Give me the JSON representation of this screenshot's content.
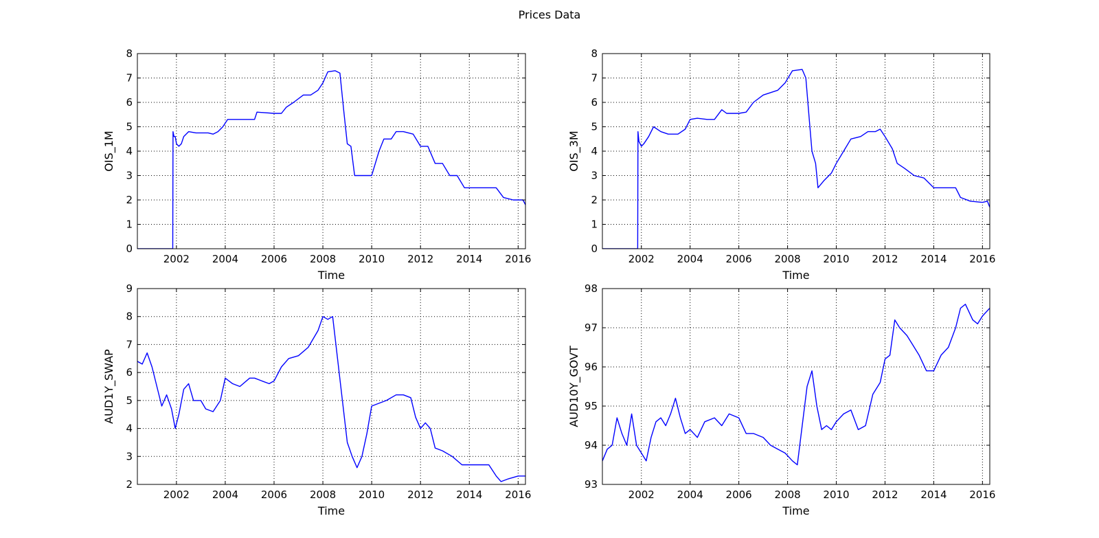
{
  "figure": {
    "title": "Prices Data"
  },
  "colors": {
    "line": "#0000ff",
    "axes": "#000000",
    "grid": "#000000"
  },
  "chart_data": [
    {
      "type": "line",
      "xlabel": "Time",
      "ylabel": "OIS_1M",
      "xlim": [
        2000.4,
        2016.3
      ],
      "ylim": [
        0,
        8
      ],
      "xticks": [
        2002,
        2004,
        2006,
        2008,
        2010,
        2012,
        2014,
        2016
      ],
      "yticks": [
        0,
        1,
        2,
        3,
        4,
        5,
        6,
        7,
        8
      ],
      "grid": true,
      "series": [
        {
          "x": [
            2000.4,
            2001.85,
            2001.86,
            2001.9,
            2001.95,
            2002.0,
            2002.1,
            2002.2,
            2002.3,
            2002.5,
            2002.8,
            2003.0,
            2003.3,
            2003.5,
            2003.7,
            2003.9,
            2004.1,
            2004.5,
            2005.0,
            2005.2,
            2005.3,
            2006.0,
            2006.3,
            2006.5,
            2006.8,
            2007.2,
            2007.5,
            2007.8,
            2008.0,
            2008.2,
            2008.5,
            2008.7,
            2008.85,
            2009.0,
            2009.15,
            2009.3,
            2009.5,
            2009.8,
            2010.0,
            2010.3,
            2010.5,
            2010.8,
            2011.0,
            2011.3,
            2011.7,
            2012.0,
            2012.3,
            2012.6,
            2012.9,
            2013.2,
            2013.5,
            2013.8,
            2014.5,
            2014.95,
            2015.1,
            2015.4,
            2015.8,
            2016.2,
            2016.3
          ],
          "y": [
            0,
            0,
            4.8,
            4.6,
            4.6,
            4.3,
            4.2,
            4.3,
            4.6,
            4.8,
            4.75,
            4.75,
            4.75,
            4.7,
            4.8,
            5.0,
            5.3,
            5.3,
            5.3,
            5.3,
            5.6,
            5.55,
            5.55,
            5.8,
            6.0,
            6.3,
            6.3,
            6.5,
            6.8,
            7.25,
            7.3,
            7.2,
            5.7,
            4.3,
            4.2,
            3.0,
            3.0,
            3.0,
            3.0,
            4.0,
            4.5,
            4.5,
            4.8,
            4.8,
            4.7,
            4.2,
            4.2,
            3.5,
            3.5,
            3.0,
            3.0,
            2.5,
            2.5,
            2.5,
            2.5,
            2.1,
            2.0,
            2.0,
            1.8
          ]
        }
      ]
    },
    {
      "type": "line",
      "xlabel": "Time",
      "ylabel": "OIS_3M",
      "xlim": [
        2000.4,
        2016.3
      ],
      "ylim": [
        0,
        8
      ],
      "xticks": [
        2002,
        2004,
        2006,
        2008,
        2010,
        2012,
        2014,
        2016
      ],
      "yticks": [
        0,
        1,
        2,
        3,
        4,
        5,
        6,
        7,
        8
      ],
      "grid": true,
      "series": [
        {
          "x": [
            2000.4,
            2001.85,
            2001.86,
            2001.9,
            2002.0,
            2002.1,
            2002.3,
            2002.5,
            2002.8,
            2003.1,
            2003.5,
            2003.8,
            2004.0,
            2004.3,
            2004.7,
            2005.0,
            2005.3,
            2005.5,
            2006.0,
            2006.3,
            2006.6,
            2007.0,
            2007.3,
            2007.6,
            2007.9,
            2008.2,
            2008.6,
            2008.75,
            2008.9,
            2009.0,
            2009.15,
            2009.25,
            2009.5,
            2009.8,
            2010.0,
            2010.3,
            2010.6,
            2011.0,
            2011.3,
            2011.6,
            2011.8,
            2012.0,
            2012.3,
            2012.5,
            2012.8,
            2013.2,
            2013.6,
            2014.0,
            2014.5,
            2014.9,
            2015.1,
            2015.5,
            2016.0,
            2016.2,
            2016.3
          ],
          "y": [
            0,
            0,
            4.8,
            4.4,
            4.2,
            4.3,
            4.6,
            5.0,
            4.8,
            4.7,
            4.7,
            4.9,
            5.3,
            5.35,
            5.3,
            5.3,
            5.7,
            5.55,
            5.55,
            5.6,
            6.0,
            6.3,
            6.4,
            6.5,
            6.8,
            7.3,
            7.35,
            7.0,
            5.2,
            4.0,
            3.5,
            2.5,
            2.8,
            3.1,
            3.5,
            4.0,
            4.5,
            4.6,
            4.8,
            4.8,
            4.9,
            4.6,
            4.1,
            3.5,
            3.3,
            3.0,
            2.9,
            2.5,
            2.5,
            2.5,
            2.1,
            1.95,
            1.9,
            1.95,
            1.7
          ]
        }
      ]
    },
    {
      "type": "line",
      "xlabel": "Time",
      "ylabel": "AUD1Y_SWAP",
      "xlim": [
        2000.4,
        2016.3
      ],
      "ylim": [
        2,
        9
      ],
      "xticks": [
        2002,
        2004,
        2006,
        2008,
        2010,
        2012,
        2014,
        2016
      ],
      "yticks": [
        2,
        3,
        4,
        5,
        6,
        7,
        8,
        9
      ],
      "grid": true,
      "series": [
        {
          "x": [
            2000.4,
            2000.6,
            2000.8,
            2001.0,
            2001.2,
            2001.4,
            2001.6,
            2001.8,
            2001.95,
            2002.1,
            2002.3,
            2002.5,
            2002.7,
            2003.0,
            2003.2,
            2003.5,
            2003.8,
            2004.0,
            2004.3,
            2004.6,
            2005.0,
            2005.2,
            2005.5,
            2005.8,
            2006.0,
            2006.3,
            2006.6,
            2007.0,
            2007.4,
            2007.8,
            2008.0,
            2008.2,
            2008.4,
            2008.6,
            2008.8,
            2009.0,
            2009.2,
            2009.4,
            2009.6,
            2009.8,
            2010.0,
            2010.3,
            2010.6,
            2011.0,
            2011.3,
            2011.6,
            2011.8,
            2012.0,
            2012.2,
            2012.4,
            2012.6,
            2012.9,
            2013.3,
            2013.7,
            2014.0,
            2014.4,
            2014.8,
            2015.1,
            2015.3,
            2015.6,
            2016.0,
            2016.3
          ],
          "y": [
            6.4,
            6.3,
            6.7,
            6.2,
            5.5,
            4.8,
            5.2,
            4.7,
            4.0,
            4.5,
            5.4,
            5.6,
            5.0,
            5.0,
            4.7,
            4.6,
            5.0,
            5.8,
            5.6,
            5.5,
            5.8,
            5.8,
            5.7,
            5.6,
            5.7,
            6.2,
            6.5,
            6.6,
            6.9,
            7.5,
            8.0,
            7.9,
            8.0,
            6.5,
            5.0,
            3.5,
            3.0,
            2.6,
            3.0,
            3.8,
            4.8,
            4.9,
            5.0,
            5.2,
            5.2,
            5.1,
            4.4,
            4.0,
            4.2,
            4.0,
            3.3,
            3.2,
            3.0,
            2.7,
            2.7,
            2.7,
            2.7,
            2.3,
            2.1,
            2.2,
            2.3,
            2.3
          ]
        }
      ]
    },
    {
      "type": "line",
      "xlabel": "Time",
      "ylabel": "AUD10Y_GOVT",
      "xlim": [
        2000.4,
        2016.3
      ],
      "ylim": [
        93,
        98
      ],
      "xticks": [
        2002,
        2004,
        2006,
        2008,
        2010,
        2012,
        2014,
        2016
      ],
      "yticks": [
        93,
        94,
        95,
        96,
        97,
        98
      ],
      "grid": true,
      "series": [
        {
          "x": [
            2000.4,
            2000.6,
            2000.8,
            2001.0,
            2001.2,
            2001.4,
            2001.6,
            2001.8,
            2002.0,
            2002.2,
            2002.4,
            2002.6,
            2002.8,
            2003.0,
            2003.2,
            2003.4,
            2003.6,
            2003.8,
            2004.0,
            2004.3,
            2004.6,
            2005.0,
            2005.3,
            2005.6,
            2006.0,
            2006.3,
            2006.6,
            2007.0,
            2007.3,
            2007.6,
            2007.9,
            2008.2,
            2008.4,
            2008.6,
            2008.8,
            2009.0,
            2009.2,
            2009.4,
            2009.6,
            2009.8,
            2010.0,
            2010.3,
            2010.6,
            2010.9,
            2011.2,
            2011.5,
            2011.8,
            2012.0,
            2012.2,
            2012.4,
            2012.6,
            2012.9,
            2013.1,
            2013.4,
            2013.7,
            2014.0,
            2014.3,
            2014.6,
            2014.9,
            2015.1,
            2015.3,
            2015.6,
            2015.8,
            2016.0,
            2016.3
          ],
          "y": [
            93.6,
            93.9,
            94.0,
            94.7,
            94.3,
            94.0,
            94.8,
            94.0,
            93.8,
            93.6,
            94.2,
            94.6,
            94.7,
            94.5,
            94.8,
            95.2,
            94.7,
            94.3,
            94.4,
            94.2,
            94.6,
            94.7,
            94.5,
            94.8,
            94.7,
            94.3,
            94.3,
            94.2,
            94.0,
            93.9,
            93.8,
            93.6,
            93.5,
            94.5,
            95.5,
            95.9,
            95.0,
            94.4,
            94.5,
            94.4,
            94.6,
            94.8,
            94.9,
            94.4,
            94.5,
            95.3,
            95.6,
            96.2,
            96.3,
            97.2,
            97.0,
            96.8,
            96.6,
            96.3,
            95.9,
            95.9,
            96.3,
            96.5,
            97.0,
            97.5,
            97.6,
            97.2,
            97.1,
            97.3,
            97.5
          ]
        }
      ]
    }
  ]
}
